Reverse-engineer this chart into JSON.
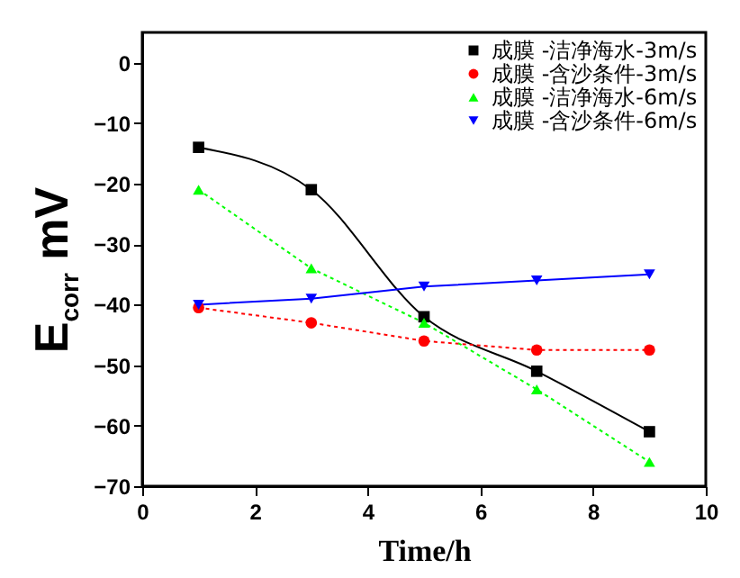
{
  "chart_data": {
    "type": "line",
    "xlabel": "Time/h",
    "ylabel": "E$_{corr}$ mV",
    "x": [
      1,
      3,
      5,
      7,
      9
    ],
    "xlim": [
      0,
      10
    ],
    "xticks": [
      0,
      2,
      4,
      6,
      8,
      10
    ],
    "ylim": [
      -70,
      5
    ],
    "yticks": [
      0,
      -10,
      -20,
      -30,
      -40,
      -50,
      -60,
      -70
    ],
    "legend": "top right",
    "grid": false,
    "series": [
      {
        "name": "成膜 -洁净海水-3m/s",
        "color": "#000000",
        "values": [
          -14,
          -21,
          -42,
          -51,
          -61
        ],
        "marker": "square",
        "line_style": "solid"
      },
      {
        "name": "成膜 -含沙条件-3m/s",
        "color": "#ff0000",
        "values": [
          -40.5,
          -43,
          -46,
          -47.5,
          -47.5
        ],
        "marker": "circle",
        "line_style": "dotted"
      },
      {
        "name": "成膜 -洁净海水-6m/s",
        "color": "#00ff00",
        "values": [
          -21,
          -34,
          -43,
          -54,
          -66
        ],
        "marker": "triangle",
        "line_style": "dotted"
      },
      {
        "name": "成膜 -含沙条件-6m/s",
        "color": "#0000ff",
        "values": [
          -40,
          -39,
          -37,
          -36,
          -35
        ],
        "marker": "triangle-down",
        "line_style": "solid"
      }
    ]
  }
}
